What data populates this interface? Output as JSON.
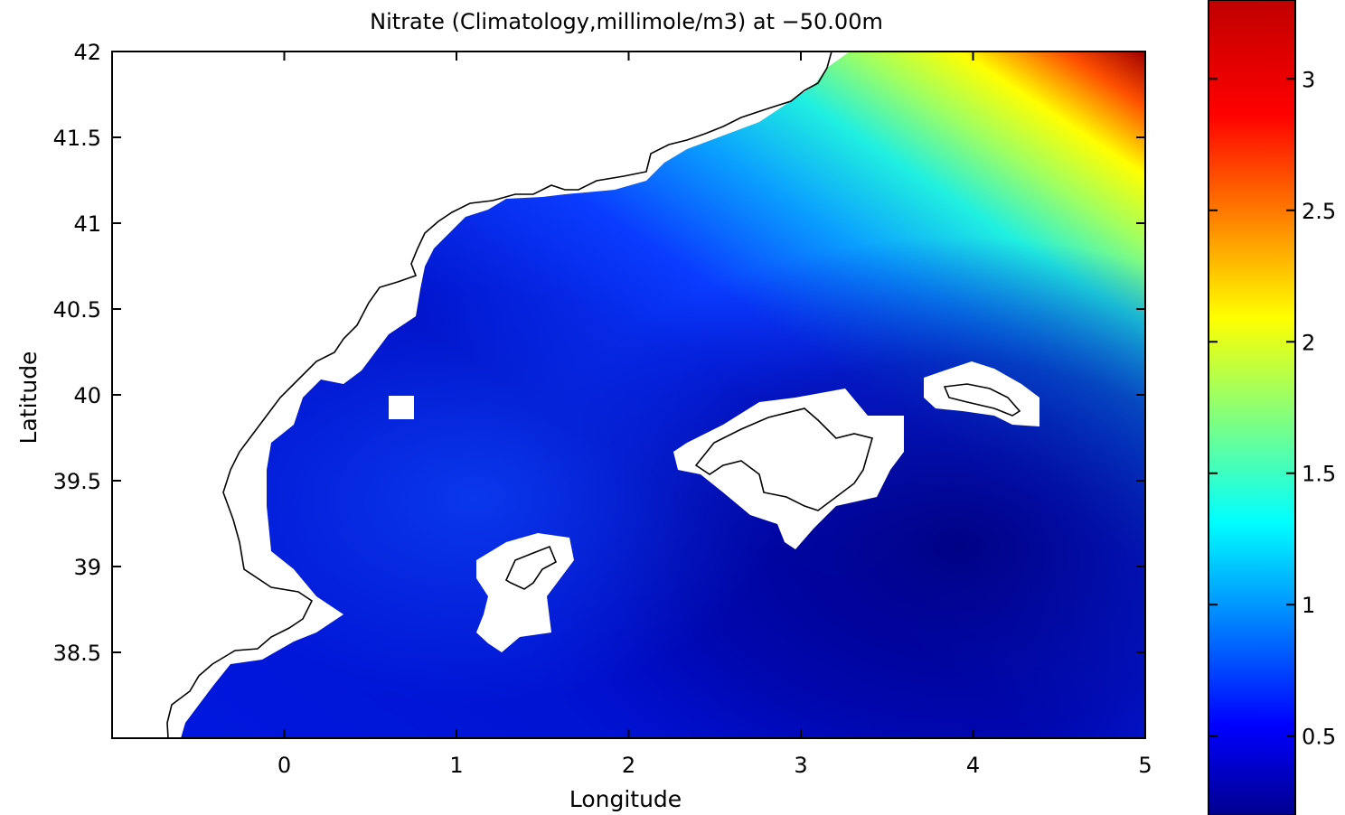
{
  "chart_data": {
    "type": "heatmap",
    "title": "Nitrate (Climatology,millimole/m3) at −50.00m",
    "xlabel": "Longitude",
    "ylabel": "Latitude",
    "xlim": [
      -1.0,
      5.0
    ],
    "ylim": [
      38.0,
      42.0
    ],
    "xticks": [
      0,
      1,
      2,
      3,
      4,
      5
    ],
    "yticks": [
      38.5,
      39,
      39.5,
      40,
      40.5,
      41,
      41.5,
      42
    ],
    "xtick_labels": [
      "0",
      "1",
      "2",
      "3",
      "4",
      "5"
    ],
    "ytick_labels": [
      "38.5",
      "39",
      "39.5",
      "40",
      "40.5",
      "41",
      "41.5",
      "42"
    ],
    "colormap": "jet",
    "colorbar": {
      "range": [
        0.2,
        3.3
      ],
      "ticks": [
        0.5,
        1,
        1.5,
        2,
        2.5,
        3
      ],
      "tick_labels": [
        "0.5",
        "1",
        "1.5",
        "2",
        "2.5",
        "3"
      ]
    },
    "field_samples": [
      {
        "lon": 0.1,
        "lat": 39.4,
        "value": 0.6
      },
      {
        "lon": 1.1,
        "lat": 39.4,
        "value": 0.68
      },
      {
        "lon": 2.0,
        "lat": 40.0,
        "value": 0.4
      },
      {
        "lon": 4.5,
        "lat": 39.0,
        "value": 0.22
      },
      {
        "lon": 3.5,
        "lat": 40.6,
        "value": 0.5
      },
      {
        "lon": 4.0,
        "lat": 41.0,
        "value": 1.1
      },
      {
        "lon": 3.6,
        "lat": 41.6,
        "value": 1.6
      },
      {
        "lon": 4.5,
        "lat": 41.8,
        "value": 2.3
      },
      {
        "lon": 5.0,
        "lat": 42.0,
        "value": 3.3
      }
    ],
    "land_mask": "white",
    "coastline_color": "#000000"
  }
}
